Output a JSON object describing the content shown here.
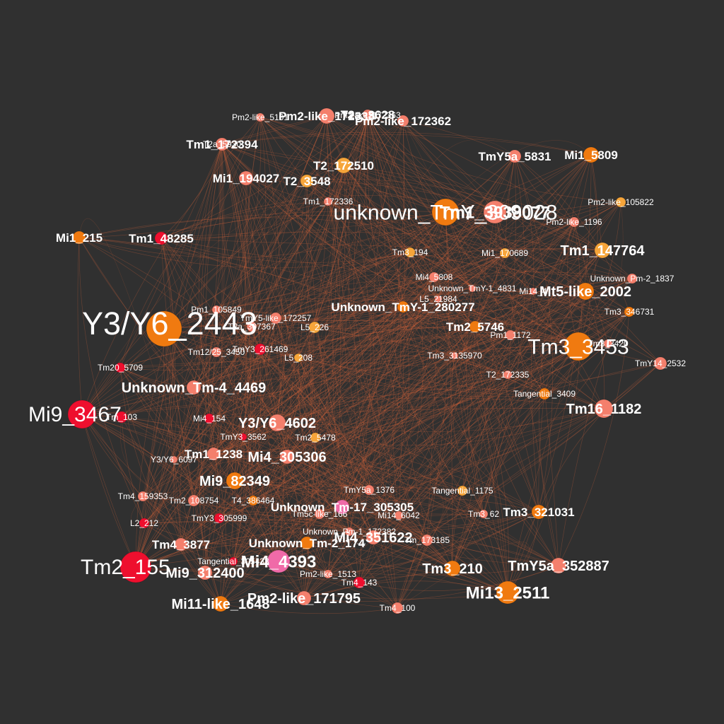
{
  "colors": {
    "background": "#303030",
    "edge": "#d2643c",
    "red": "#ee0f2e",
    "salmon": "#f47f6c",
    "orange": "#f07a10",
    "light_orange": "#f6a53a",
    "pink": "#f06aa8",
    "label": "#ffffff"
  },
  "nodes": [
    {
      "id": "Y3/Y6_2443",
      "color": "orange",
      "weight": 7
    },
    {
      "id": "Tm2_155",
      "color": "red",
      "weight": 6
    },
    {
      "id": "Mi9_3467",
      "color": "red",
      "weight": 6
    },
    {
      "id": "Tm3_3453",
      "color": "orange",
      "weight": 6
    },
    {
      "id": "unknown_TmY_309028",
      "color": "orange",
      "weight": 6
    },
    {
      "id": "Tm1_3938077",
      "color": "salmon",
      "weight": 5
    },
    {
      "id": "Mi13_2511",
      "color": "orange",
      "weight": 5
    },
    {
      "id": "Mi4_4393",
      "color": "pink",
      "weight": 5
    },
    {
      "id": "Tm16_1182",
      "color": "salmon",
      "weight": 4
    },
    {
      "id": "Y3/Y6_4602",
      "color": "salmon",
      "weight": 4
    },
    {
      "id": "Mi9_82349",
      "color": "orange",
      "weight": 4
    },
    {
      "id": "TmY5a_352887",
      "color": "salmon",
      "weight": 4
    },
    {
      "id": "Mt5-like_2002",
      "color": "orange",
      "weight": 4
    },
    {
      "id": "Mi4_305306",
      "color": "salmon",
      "weight": 4
    },
    {
      "id": "Tm1_147764",
      "color": "light_orange",
      "weight": 4
    },
    {
      "id": "Pm2-like_171795",
      "color": "salmon",
      "weight": 4
    },
    {
      "id": "Unknown_Tm-4_4469",
      "color": "salmon",
      "weight": 4
    },
    {
      "id": "Mi11-like_1648",
      "color": "orange",
      "weight": 4
    },
    {
      "id": "Mi9_312400",
      "color": "salmon",
      "weight": 4
    },
    {
      "id": "Tm3_210",
      "color": "orange",
      "weight": 4
    },
    {
      "id": "Mi4_351622",
      "color": "salmon",
      "weight": 4
    },
    {
      "id": "Unknown_Tm-17_305305",
      "color": "pink",
      "weight": 3
    },
    {
      "id": "Unknown_TmY-1_280277",
      "color": "orange",
      "weight": 3
    },
    {
      "id": "Pm2-like_172362",
      "color": "salmon",
      "weight": 3
    },
    {
      "id": "Tm2_5746",
      "color": "orange",
      "weight": 3
    },
    {
      "id": "T2_172510",
      "color": "light_orange",
      "weight": 3
    },
    {
      "id": "TmY5a_5831",
      "color": "salmon",
      "weight": 3
    },
    {
      "id": "Mi1_5809",
      "color": "orange",
      "weight": 3
    },
    {
      "id": "Tm1_172394",
      "color": "salmon",
      "weight": 3
    },
    {
      "id": "Mi1_194027",
      "color": "salmon",
      "weight": 3
    },
    {
      "id": "Mi1_215",
      "color": "orange",
      "weight": 3
    },
    {
      "id": "Tm1_48285",
      "color": "red",
      "weight": 3
    },
    {
      "id": "Tm3_321031",
      "color": "orange",
      "weight": 3
    },
    {
      "id": "Tm4_3877",
      "color": "salmon",
      "weight": 3
    },
    {
      "id": "Tm1_1238",
      "color": "salmon",
      "weight": 3
    },
    {
      "id": "T2_3548",
      "color": "light_orange",
      "weight": 3
    },
    {
      "id": "Unknown_Tm-2_174",
      "color": "orange",
      "weight": 3
    },
    {
      "id": "T2a_3628",
      "color": "salmon",
      "weight": 3
    },
    {
      "id": "Pm2-like_172338",
      "color": "salmon",
      "weight": 3
    },
    {
      "id": "Tm4_143",
      "color": "red",
      "weight": 2
    },
    {
      "id": "Tm4_100",
      "color": "salmon",
      "weight": 2
    },
    {
      "id": "Pm2-like_1513",
      "color": "salmon",
      "weight": 2
    },
    {
      "id": "Tangential_305433",
      "color": "red",
      "weight": 2
    },
    {
      "id": "TmY3_305999",
      "color": "red",
      "weight": 2
    },
    {
      "id": "L2_212",
      "color": "red",
      "weight": 2
    },
    {
      "id": "Tm4_159353",
      "color": "salmon",
      "weight": 2
    },
    {
      "id": "Tm2_108754",
      "color": "salmon",
      "weight": 2
    },
    {
      "id": "T4_386464",
      "color": "orange",
      "weight": 2
    },
    {
      "id": "Y3/Y6_6097",
      "color": "salmon",
      "weight": 2
    },
    {
      "id": "TmY3_3562",
      "color": "red",
      "weight": 2
    },
    {
      "id": "Tm2_5478",
      "color": "light_orange",
      "weight": 2
    },
    {
      "id": "Mi4_154",
      "color": "red",
      "weight": 2
    },
    {
      "id": "Tm20_5709",
      "color": "red",
      "weight": 2
    },
    {
      "id": "Tm12/25_3450",
      "color": "salmon",
      "weight": 2
    },
    {
      "id": "TmY3_261469",
      "color": "red",
      "weight": 2
    },
    {
      "id": "L5_208",
      "color": "light_orange",
      "weight": 2
    },
    {
      "id": "L5_226",
      "color": "light_orange",
      "weight": 2
    },
    {
      "id": "Pm1_105849",
      "color": "salmon",
      "weight": 2
    },
    {
      "id": "TmY5-like_172257",
      "color": "salmon",
      "weight": 2
    },
    {
      "id": "Tm1_172336",
      "color": "salmon",
      "weight": 2
    },
    {
      "id": "T2a_5930",
      "color": "salmon",
      "weight": 2
    },
    {
      "id": "Pm2-like_5101",
      "color": "salmon",
      "weight": 2
    },
    {
      "id": "Pm2-like_105822",
      "color": "light_orange",
      "weight": 2
    },
    {
      "id": "Pm2-like_1196",
      "color": "salmon",
      "weight": 2
    },
    {
      "id": "Mi1_170689",
      "color": "light_orange",
      "weight": 2
    },
    {
      "id": "Tm3_194",
      "color": "light_orange",
      "weight": 2
    },
    {
      "id": "Mi4_5808",
      "color": "salmon",
      "weight": 2
    },
    {
      "id": "Unknown_Pm-2_1837",
      "color": "salmon",
      "weight": 2
    },
    {
      "id": "Unknown_TmY-1_4831",
      "color": "salmon",
      "weight": 2
    },
    {
      "id": "Tm3_346731",
      "color": "orange",
      "weight": 2
    },
    {
      "id": "Pm1_1172",
      "color": "salmon",
      "weight": 2
    },
    {
      "id": "Tm3_3135970",
      "color": "salmon",
      "weight": 2
    },
    {
      "id": "T2_172335",
      "color": "salmon",
      "weight": 2
    },
    {
      "id": "TmY14_2532",
      "color": "salmon",
      "weight": 2
    },
    {
      "id": "Tangential_3409",
      "color": "orange",
      "weight": 2
    },
    {
      "id": "Tangential_1175",
      "color": "light_orange",
      "weight": 2
    },
    {
      "id": "TmY5a_1376",
      "color": "salmon",
      "weight": 2
    },
    {
      "id": "Tm5c-like_166",
      "color": "salmon",
      "weight": 2
    },
    {
      "id": "Mi14_6042",
      "color": "salmon",
      "weight": 2
    },
    {
      "id": "Tm3_62",
      "color": "salmon",
      "weight": 2
    },
    {
      "id": "Unknown_Pm-1_172382",
      "color": "salmon",
      "weight": 2
    },
    {
      "id": "Tm_173185",
      "color": "salmon",
      "weight": 2
    },
    {
      "id": "L5_21984",
      "color": "salmon",
      "weight": 2
    },
    {
      "id": "Mi14_4",
      "color": "salmon",
      "weight": 2
    },
    {
      "id": "Tm3_3420",
      "color": "salmon",
      "weight": 2
    },
    {
      "id": "Pm2-like_172363",
      "color": "salmon",
      "weight": 2
    },
    {
      "id": "T2a_307367",
      "color": "salmon",
      "weight": 2
    },
    {
      "id": "Tm_103",
      "color": "red",
      "weight": 2
    }
  ]
}
